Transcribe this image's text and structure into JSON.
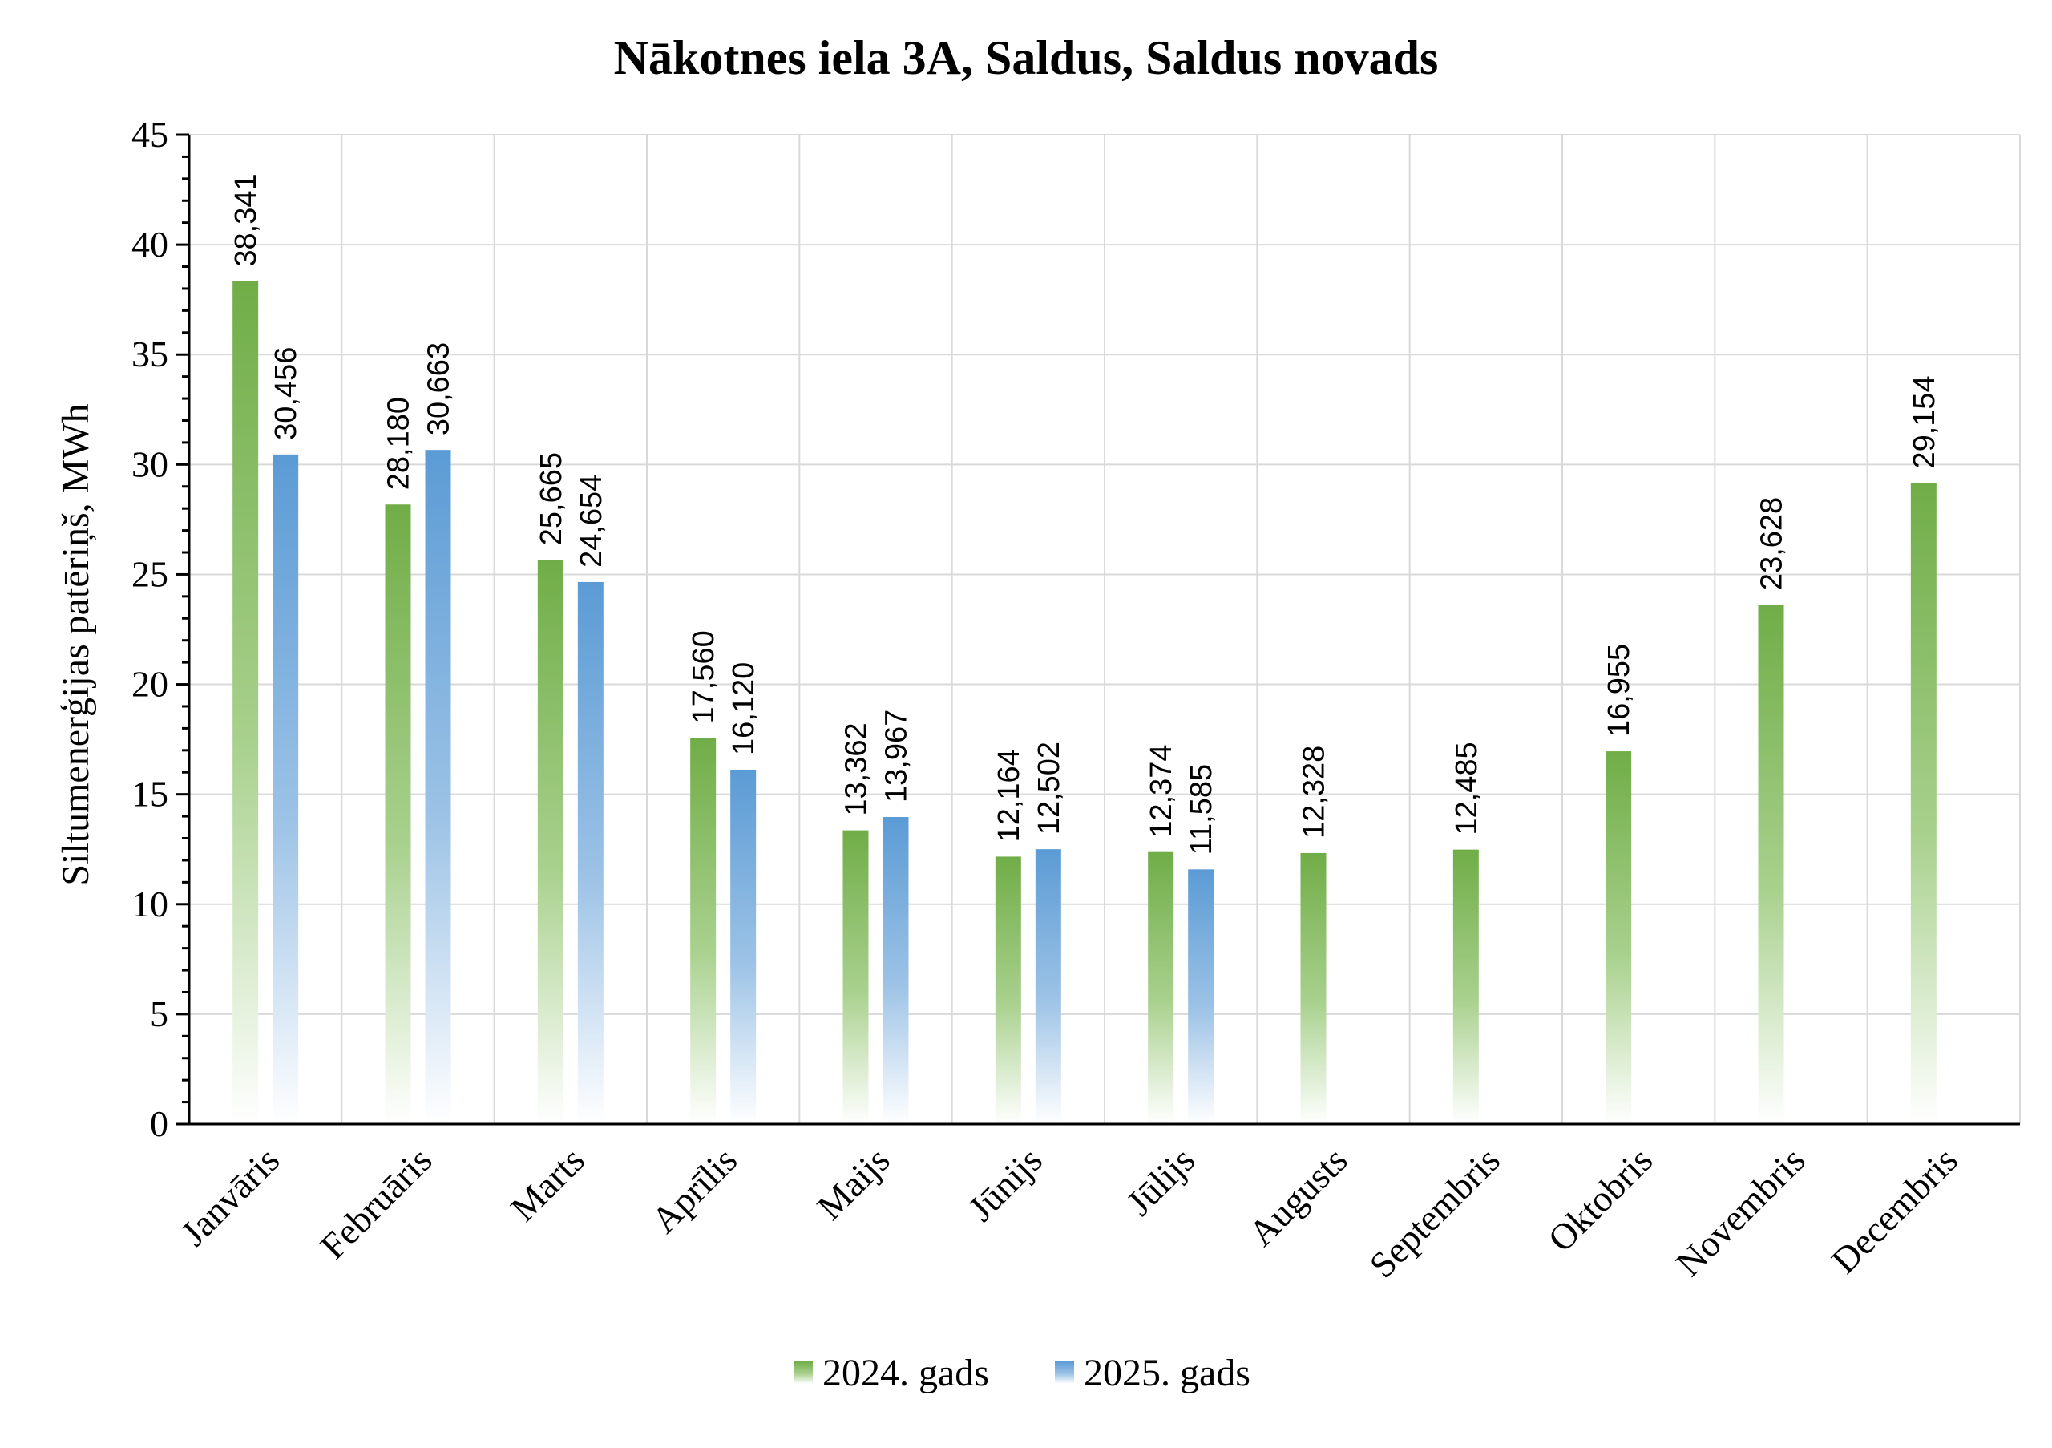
{
  "chart_data": {
    "type": "bar",
    "title": "Nākotnes iela 3A, Saldus, Saldus novads",
    "xlabel": "",
    "ylabel": "Siltumenerģijas patēriņš, MWh",
    "ylim": [
      0,
      45
    ],
    "yticks": [
      0,
      5,
      10,
      15,
      20,
      25,
      30,
      35,
      40,
      45
    ],
    "grid": true,
    "legend_position": "bottom",
    "categories": [
      "Janvāris",
      "Februāris",
      "Marts",
      "Aprīlis",
      "Maijs",
      "Jūnijs",
      "Jūlijs",
      "Augusts",
      "Septembris",
      "Oktobris",
      "Novembris",
      "Decembris"
    ],
    "series": [
      {
        "name": "2024. gads",
        "color": "#70ad47",
        "values": [
          38.341,
          28.18,
          25.665,
          17.56,
          13.362,
          12.164,
          12.374,
          12.328,
          12.485,
          16.955,
          23.628,
          29.154
        ],
        "labels": [
          "38,341",
          "28,180",
          "25,665",
          "17,560",
          "13,362",
          "12,164",
          "12,374",
          "12,328",
          "12,485",
          "16,955",
          "23,628",
          "29,154"
        ]
      },
      {
        "name": "2025. gads",
        "color": "#5b9bd5",
        "values": [
          30.456,
          30.663,
          24.654,
          16.12,
          13.967,
          12.502,
          11.585,
          null,
          null,
          null,
          null,
          null
        ],
        "labels": [
          "30,456",
          "30,663",
          "24,654",
          "16,120",
          "13,967",
          "12,502",
          "11,585",
          "",
          "",
          "",
          "",
          ""
        ]
      }
    ]
  }
}
